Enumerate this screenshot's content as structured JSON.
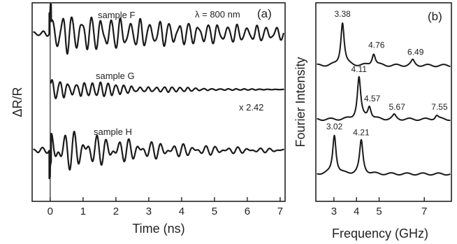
{
  "chart_data": [
    {
      "type": "line",
      "panel_label": "(a)",
      "annotation": "λ = 800 nm",
      "xlabel": "Time (ns)",
      "ylabel": "ΔR/R",
      "xlim": [
        -0.55,
        7.15
      ],
      "x_ticks": [
        "0",
        "1",
        "2",
        "3",
        "4",
        "5",
        "6",
        "7"
      ],
      "series": [
        {
          "name": "sample F",
          "freqs_ghz": [
            3.38,
            4.76,
            6.49
          ],
          "amps": [
            1.0,
            0.28,
            0.12
          ],
          "decay_ns": 12,
          "envelope_points": [
            [
              -0.5,
              0.1
            ],
            [
              0,
              1.0
            ],
            [
              7,
              0.6
            ]
          ]
        },
        {
          "name": "sample G",
          "scale_label": "x 2.42",
          "freqs_ghz": [
            4.11,
            4.57,
            5.67,
            7.55
          ],
          "amps": [
            1.0,
            0.3,
            0.1,
            0.1
          ],
          "decay_ns": 3.5,
          "envelope_points": [
            [
              0,
              1.0
            ],
            [
              7,
              0.12
            ]
          ]
        },
        {
          "name": "sample H",
          "freqs_ghz": [
            3.02,
            4.21
          ],
          "amps": [
            1.0,
            0.85
          ],
          "decay_ns": 5,
          "envelope_points": [
            [
              -0.5,
              0.1
            ],
            [
              0,
              1.0
            ],
            [
              7,
              0.3
            ]
          ]
        }
      ]
    },
    {
      "type": "line",
      "panel_label": "(b)",
      "xlabel": "Frequency (GHz)",
      "ylabel": "Fourier Intensity",
      "xlim": [
        2.2,
        8.2
      ],
      "x_ticks": [
        "3",
        "4",
        "5",
        "7"
      ],
      "x_tick_values": [
        3,
        4,
        5,
        7
      ],
      "series": [
        {
          "name": "sample F",
          "peaks": [
            {
              "f": 3.38,
              "label": "3.38",
              "h": 1.0
            },
            {
              "f": 4.76,
              "label": "4.76",
              "h": 0.28
            },
            {
              "f": 6.49,
              "label": "6.49",
              "h": 0.12
            }
          ]
        },
        {
          "name": "sample G",
          "peaks": [
            {
              "f": 4.11,
              "label": "4.11",
              "h": 1.0
            },
            {
              "f": 4.57,
              "label": "4.57",
              "h": 0.3
            },
            {
              "f": 5.67,
              "label": "5.67",
              "h": 0.1
            },
            {
              "f": 7.55,
              "label": "7.55",
              "h": 0.1
            }
          ]
        },
        {
          "name": "sample H",
          "peaks": [
            {
              "f": 3.02,
              "label": "3.02",
              "h": 1.0
            },
            {
              "f": 4.21,
              "label": "4.21",
              "h": 0.85
            }
          ]
        }
      ]
    }
  ]
}
